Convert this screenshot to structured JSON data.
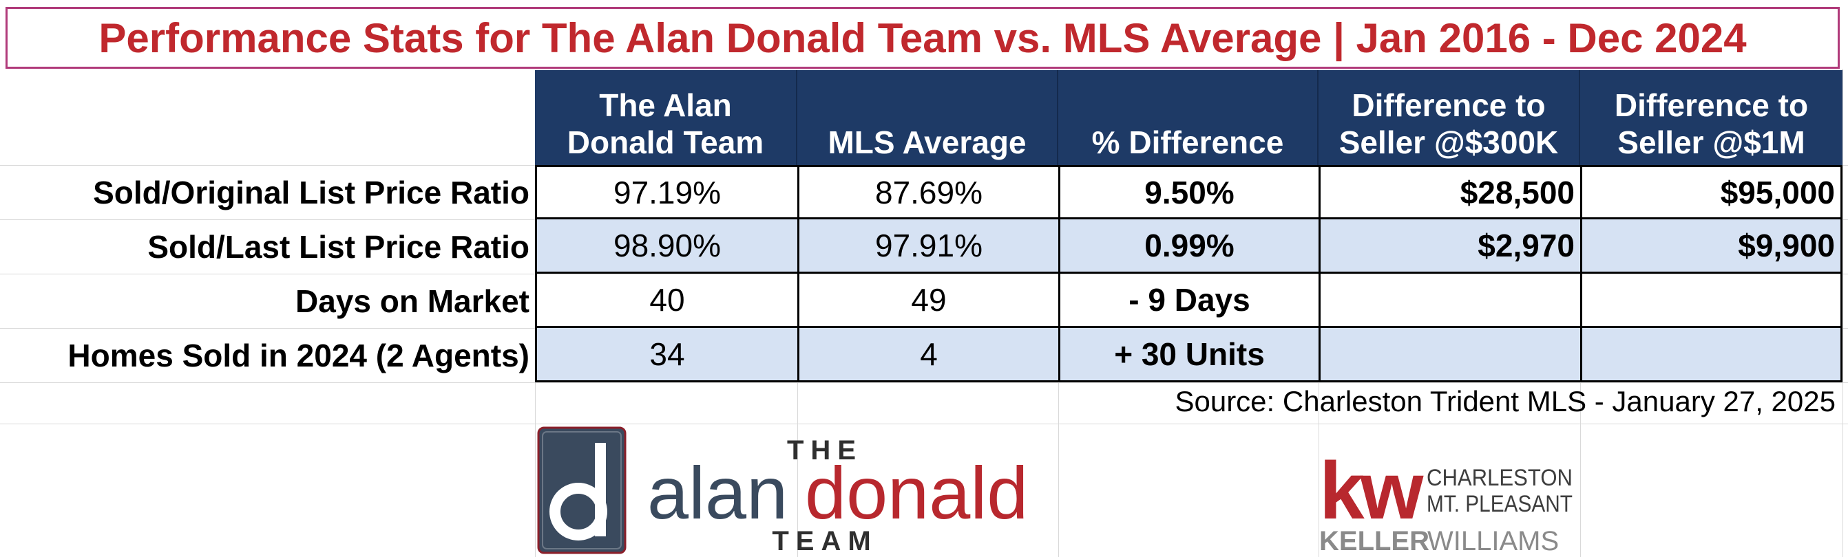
{
  "title": "Performance Stats for The Alan Donald Team vs. MLS Average | Jan 2016 - Dec 2024",
  "columns": [
    {
      "line1": "The Alan",
      "line2": "Donald Team"
    },
    {
      "line1": "",
      "line2": "MLS Average"
    },
    {
      "line1": "",
      "line2": "% Difference"
    },
    {
      "line1": "Difference to",
      "line2": "Seller @$300K"
    },
    {
      "line1": "Difference to",
      "line2": "Seller @$1M"
    }
  ],
  "rows": [
    {
      "label": "Sold/Original List Price Ratio",
      "team": "97.19%",
      "mls": "87.69%",
      "diff": "9.50%",
      "d300k": "$28,500",
      "d1m": "$95,000"
    },
    {
      "label": "Sold/Last List Price Ratio",
      "team": "98.90%",
      "mls": "97.91%",
      "diff": "0.99%",
      "d300k": "$2,970",
      "d1m": "$9,900"
    },
    {
      "label": "Days on Market",
      "team": "40",
      "mls": "49",
      "diff": "- 9 Days",
      "d300k": "",
      "d1m": ""
    },
    {
      "label": "Homes Sold in 2024 (2 Agents)",
      "team": "34",
      "mls": "4",
      "diff": "+ 30 Units",
      "d300k": "",
      "d1m": ""
    }
  ],
  "source": "Source: Charleston Trident MLS - January 27, 2025",
  "logo_team": {
    "the": "THE",
    "alan": "alan",
    "donald": "donald",
    "team": "TEAM",
    "monogram": "d"
  },
  "logo_kw": {
    "kw": "kw",
    "line1": "CHARLESTON",
    "line2": "MT. PLEASANT",
    "brand1": "KELLER",
    "brand2": "WILLIAMS"
  },
  "colors": {
    "title": "#c0282d",
    "title_border": "#b03a7a",
    "header_bg": "#1e3a66",
    "shade": "#d6e2f3",
    "logo_navy": "#3a4a5e",
    "logo_red": "#b8282e"
  }
}
